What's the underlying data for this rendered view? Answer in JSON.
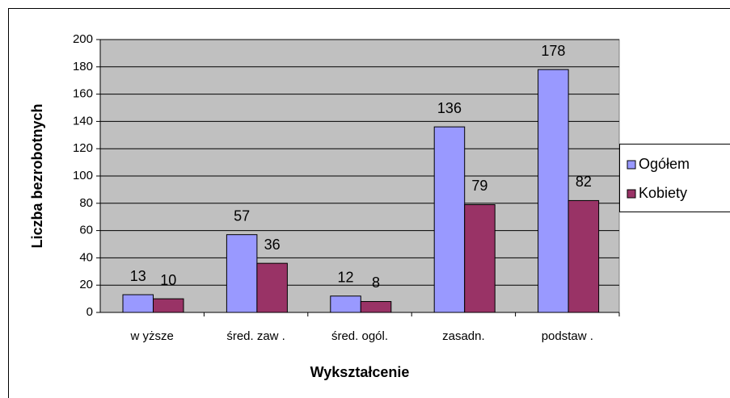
{
  "chart_data": {
    "type": "bar",
    "xlabel": "Wykształcenie",
    "ylabel": "Liczba bezrobotnych",
    "categories": [
      "w yższe",
      "śred. zaw .",
      "śred. ogól.",
      "zasadn.",
      "podstaw ."
    ],
    "series": [
      {
        "name": "Ogółem",
        "color": "#9999ff",
        "values": [
          13,
          57,
          12,
          136,
          178
        ]
      },
      {
        "name": "Kobiety",
        "color": "#993366",
        "values": [
          10,
          36,
          8,
          79,
          82
        ]
      }
    ],
    "ylim": [
      0,
      200
    ],
    "yticks": [
      0,
      20,
      40,
      60,
      80,
      100,
      120,
      140,
      160,
      180,
      200
    ],
    "grid": true,
    "legend": "right"
  }
}
